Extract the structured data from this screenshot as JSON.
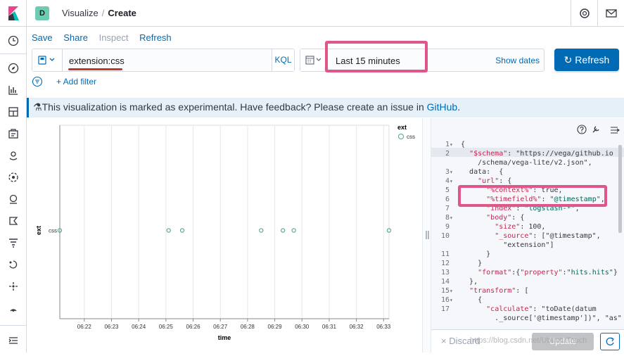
{
  "header": {
    "space_initial": "D",
    "breadcrumb_parent": "Visualize",
    "breadcrumb_sep": "/",
    "breadcrumb_current": "Create"
  },
  "menu": {
    "save": "Save",
    "share": "Share",
    "inspect": "Inspect",
    "refresh": "Refresh"
  },
  "query": {
    "value": "extension:css",
    "language": "KQL"
  },
  "timepicker": {
    "value": "Last 15 minutes",
    "show_dates": "Show dates",
    "refresh_label": "Refresh",
    "refresh_glyph": "↻"
  },
  "filters": {
    "add_filter": "+ Add filter"
  },
  "banner": {
    "glyph": "⚗",
    "text": "This visualization is marked as experimental. Have feedback? Please create an issue in ",
    "link": "GitHub",
    "suffix": "."
  },
  "chart_data": {
    "type": "scatter",
    "xlabel": "time",
    "ylabel": "ext",
    "categories": [
      "css"
    ],
    "x_ticks": [
      "06:22",
      "06:23",
      "06:24",
      "06:25",
      "06:26",
      "06:27",
      "06:28",
      "06:29",
      "06:30",
      "06:31",
      "06:32",
      "06:33"
    ],
    "xlim": [
      "06:21:06",
      "06:33:12"
    ],
    "legend": {
      "title": "ext",
      "entries": [
        "css"
      ],
      "placement": "top-right"
    },
    "series": [
      {
        "name": "css",
        "color": "#4fa88a",
        "points": [
          {
            "x": "06:21:06",
            "y": "css"
          },
          {
            "x": "06:25:06",
            "y": "css"
          },
          {
            "x": "06:25:36",
            "y": "css"
          },
          {
            "x": "06:28:30",
            "y": "css"
          },
          {
            "x": "06:29:18",
            "y": "css"
          },
          {
            "x": "06:29:42",
            "y": "css"
          },
          {
            "x": "06:33:12",
            "y": "css"
          }
        ]
      }
    ],
    "grid": true
  },
  "editor": {
    "lines": [
      {
        "n": "1",
        "fold": "▾",
        "text": "{"
      },
      {
        "n": "2",
        "fold": "",
        "text": "  \"$schema\": \"https://vega/github.io"
      },
      {
        "n": "",
        "fold": "",
        "text": "    /schema/vega-lite/v2.json\","
      },
      {
        "n": "3",
        "fold": "▾",
        "text": "  data:  {"
      },
      {
        "n": "4",
        "fold": "▾",
        "text": "    \"url\": {"
      },
      {
        "n": "5",
        "fold": "",
        "text": "      \"%context%\": true,"
      },
      {
        "n": "6",
        "fold": "",
        "text": "      \"%timefield%\": \"@timestamp\","
      },
      {
        "n": "7",
        "fold": "",
        "text": "      \"index\": \"logstash-*\","
      },
      {
        "n": "8",
        "fold": "▾",
        "text": "      \"body\": {"
      },
      {
        "n": "9",
        "fold": "",
        "text": "        \"size\": 100,"
      },
      {
        "n": "10",
        "fold": "",
        "text": "        \"_source\": [\"@timestamp\","
      },
      {
        "n": "",
        "fold": "",
        "text": "          \"extension\"]"
      },
      {
        "n": "11",
        "fold": "",
        "text": "      }"
      },
      {
        "n": "12",
        "fold": "",
        "text": "    }"
      },
      {
        "n": "13",
        "fold": "",
        "text": "    \"format\":{\"property\":\"hits.hits\"}"
      },
      {
        "n": "14",
        "fold": "",
        "text": "  },"
      },
      {
        "n": "15",
        "fold": "▾",
        "text": "  \"transform\": ["
      },
      {
        "n": "16",
        "fold": "▾",
        "text": "    {"
      },
      {
        "n": "17",
        "fold": "",
        "text": "      \"calculate\": \"toDate(datum"
      },
      {
        "n": "",
        "fold": "",
        "text": "        ._source['@timestamp'])\", \"as\""
      }
    ],
    "discard": "× Discard",
    "update": "Update"
  },
  "watermark": "https://blog.csdn.net/UbuntuTouch",
  "colors": {
    "accent": "#006bb4",
    "highlight": "#e0568a",
    "space_badge": "#6dccb1"
  }
}
